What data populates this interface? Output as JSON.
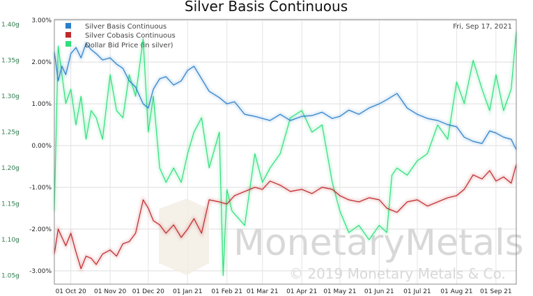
{
  "chart_data": {
    "type": "line",
    "title": "Silver Basis Continuous",
    "date_label": "Fri, Sep 17, 2021",
    "watermark": "MonetaryMetals",
    "copyright": "© 2019 Monetary Metals & Co.",
    "x_start": "2020-09-18",
    "x_ticks": [
      "01 Oct 20",
      "01 Nov 20",
      "01 Dec 20",
      "01 Jan 21",
      "01 Feb 21",
      "01 Mar 21",
      "01 Apr 21",
      "01 May 21",
      "01 Jun 21",
      "01 Jul 21",
      "01 Aug 21",
      "01 Sep 21"
    ],
    "x_tick_days": [
      13,
      44,
      74,
      105,
      136,
      164,
      195,
      225,
      256,
      286,
      317,
      348
    ],
    "x_range_days": [
      0,
      364
    ],
    "y_left": {
      "ticks": [
        -3,
        -2,
        -1,
        0,
        1,
        2,
        3
      ],
      "labels": [
        "-3.00%",
        "-2.00%",
        "-1.00%",
        "0.00%",
        "1.00%",
        "2.00%",
        "3.00%"
      ],
      "range": [
        -3.32,
        3.02
      ]
    },
    "y_right": {
      "ticks": [
        1.05,
        1.1,
        1.15,
        1.2,
        1.25,
        1.3,
        1.35,
        1.4
      ],
      "labels": [
        "1.05g",
        "1.10g",
        "1.15g",
        "1.20g",
        "1.25g",
        "1.30g",
        "1.35g",
        "1.40g"
      ],
      "range": [
        1.038,
        1.407
      ]
    },
    "legend": "top-left",
    "grid": true,
    "series": [
      {
        "name": "Silver Basis Continuous",
        "axis": "left",
        "color": "#2a7fc9",
        "days": [
          0,
          3,
          6,
          9,
          13,
          17,
          21,
          25,
          29,
          33,
          38,
          44,
          49,
          54,
          59,
          64,
          70,
          74,
          78,
          83,
          88,
          94,
          100,
          105,
          110,
          116,
          122,
          130,
          136,
          142,
          150,
          158,
          164,
          170,
          178,
          186,
          195,
          203,
          211,
          219,
          225,
          232,
          240,
          248,
          256,
          262,
          270,
          278,
          286,
          294,
          302,
          310,
          317,
          323,
          330,
          337,
          343,
          348,
          354,
          360,
          364
        ],
        "values": [
          2.25,
          1.55,
          1.9,
          1.7,
          2.2,
          2.35,
          2.1,
          2.45,
          2.3,
          2.2,
          2.05,
          2.1,
          1.95,
          1.85,
          1.55,
          1.4,
          1.0,
          0.9,
          1.35,
          1.6,
          1.65,
          1.45,
          1.55,
          1.8,
          1.9,
          1.6,
          1.3,
          1.15,
          1.0,
          1.05,
          0.75,
          0.7,
          0.65,
          0.6,
          0.75,
          0.6,
          0.7,
          0.72,
          0.8,
          0.65,
          0.7,
          0.85,
          0.75,
          0.9,
          1.0,
          1.1,
          1.25,
          0.9,
          0.75,
          0.65,
          0.6,
          0.5,
          0.45,
          0.2,
          0.1,
          0.05,
          0.35,
          0.3,
          0.2,
          0.15,
          -0.1
        ]
      },
      {
        "name": "Silver Cobasis Continuous",
        "axis": "left",
        "color": "#c0282a",
        "days": [
          0,
          3,
          6,
          9,
          13,
          17,
          21,
          25,
          29,
          33,
          38,
          44,
          49,
          54,
          59,
          64,
          70,
          74,
          78,
          83,
          88,
          94,
          100,
          105,
          110,
          116,
          122,
          130,
          136,
          142,
          150,
          158,
          164,
          170,
          178,
          186,
          195,
          203,
          211,
          219,
          225,
          232,
          240,
          248,
          256,
          262,
          270,
          278,
          286,
          294,
          302,
          310,
          317,
          323,
          330,
          337,
          343,
          348,
          354,
          360,
          364
        ],
        "values": [
          -2.6,
          -2.0,
          -2.2,
          -2.4,
          -2.1,
          -2.55,
          -2.95,
          -2.65,
          -2.7,
          -2.85,
          -2.6,
          -2.5,
          -2.65,
          -2.35,
          -2.3,
          -2.1,
          -1.3,
          -1.5,
          -1.8,
          -1.9,
          -2.1,
          -1.9,
          -2.2,
          -2.0,
          -1.75,
          -2.1,
          -1.3,
          -1.35,
          -1.4,
          -1.2,
          -1.1,
          -1.0,
          -1.05,
          -0.85,
          -0.95,
          -1.1,
          -1.05,
          -1.15,
          -1.0,
          -1.05,
          -1.2,
          -1.3,
          -1.35,
          -1.25,
          -1.3,
          -1.5,
          -1.6,
          -1.35,
          -1.3,
          -1.45,
          -1.35,
          -1.25,
          -1.2,
          -1.05,
          -0.7,
          -0.8,
          -0.6,
          -0.85,
          -0.75,
          -0.9,
          -0.45
        ]
      },
      {
        "name": "Dollar Bid Price (in silver)",
        "axis": "right",
        "color": "#2ee07a",
        "days": [
          0,
          3,
          6,
          9,
          13,
          17,
          21,
          25,
          29,
          33,
          38,
          44,
          49,
          54,
          59,
          64,
          70,
          74,
          78,
          83,
          88,
          94,
          100,
          105,
          110,
          116,
          122,
          130,
          133,
          136,
          140,
          145,
          150,
          158,
          164,
          170,
          178,
          186,
          195,
          203,
          211,
          219,
          225,
          232,
          240,
          248,
          256,
          262,
          266,
          270,
          278,
          286,
          294,
          302,
          310,
          317,
          323,
          330,
          337,
          343,
          348,
          354,
          360,
          364
        ],
        "values": [
          1.14,
          1.37,
          1.33,
          1.29,
          1.31,
          1.26,
          1.3,
          1.24,
          1.28,
          1.27,
          1.24,
          1.33,
          1.28,
          1.27,
          1.33,
          1.3,
          1.38,
          1.25,
          1.3,
          1.2,
          1.18,
          1.2,
          1.18,
          1.22,
          1.25,
          1.27,
          1.2,
          1.25,
          1.05,
          1.17,
          1.14,
          1.13,
          1.12,
          1.22,
          1.18,
          1.2,
          1.22,
          1.27,
          1.28,
          1.25,
          1.26,
          1.18,
          1.14,
          1.11,
          1.12,
          1.1,
          1.12,
          1.11,
          1.19,
          1.2,
          1.19,
          1.21,
          1.22,
          1.26,
          1.24,
          1.32,
          1.29,
          1.35,
          1.31,
          1.28,
          1.33,
          1.28,
          1.31,
          1.39
        ]
      }
    ]
  }
}
